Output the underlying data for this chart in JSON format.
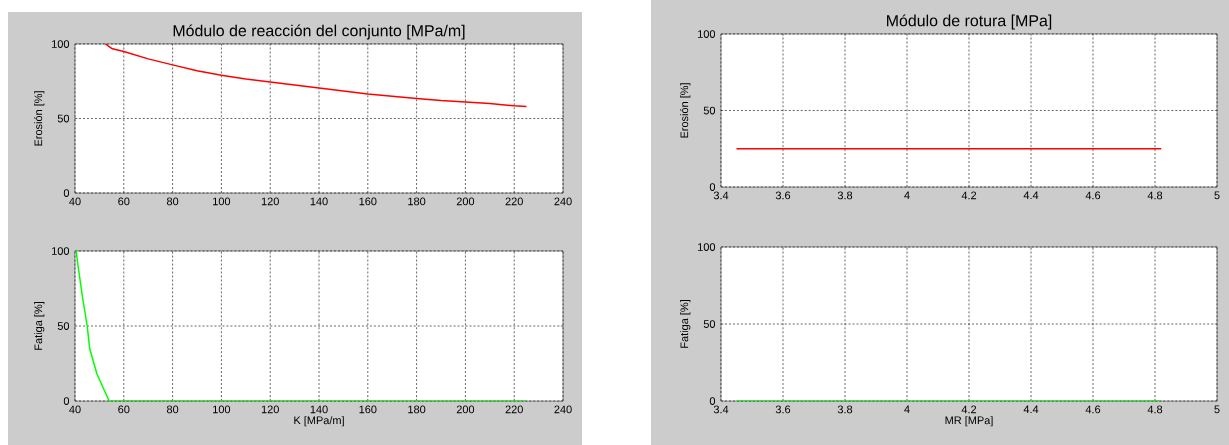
{
  "chart_data": [
    {
      "type": "line",
      "title": "Módulo de reacción del conjunto [MPa/m]",
      "ylabel": "Erosión [%]",
      "xlim": [
        40,
        240
      ],
      "ylim": [
        0,
        100
      ],
      "xticks": [
        40,
        60,
        80,
        100,
        120,
        140,
        160,
        180,
        200,
        220,
        240
      ],
      "yticks": [
        0,
        50,
        100
      ],
      "grid": true,
      "series": [
        {
          "color": "#ff0000",
          "x": [
            52.5,
            55,
            60,
            70,
            80,
            90,
            100,
            110,
            120,
            130,
            140,
            150,
            160,
            170,
            180,
            190,
            200,
            210,
            220,
            225
          ],
          "values": [
            100,
            97,
            95,
            90,
            86,
            82,
            79,
            76.5,
            74.5,
            72.5,
            70.5,
            68.5,
            66.5,
            65,
            63.5,
            62,
            61,
            60,
            58.5,
            58
          ]
        }
      ]
    },
    {
      "type": "line",
      "xlabel": "K [MPa/m]",
      "ylabel": "Fatiga [%]",
      "xlim": [
        40,
        240
      ],
      "ylim": [
        0,
        100
      ],
      "xticks": [
        40,
        60,
        80,
        100,
        120,
        140,
        160,
        180,
        200,
        220,
        240
      ],
      "yticks": [
        0,
        50,
        100
      ],
      "grid": true,
      "series": [
        {
          "color": "#00ff00",
          "x": [
            40.5,
            41,
            43,
            45,
            46,
            49,
            54,
            225
          ],
          "values": [
            100,
            93,
            70,
            50,
            35,
            18,
            0,
            0
          ]
        }
      ]
    },
    {
      "type": "line",
      "title": "Módulo de rotura [MPa]",
      "ylabel": "Erosión [%]",
      "xlim": [
        3.4,
        5
      ],
      "ylim": [
        0,
        100
      ],
      "xticks": [
        3.4,
        3.6,
        3.8,
        4,
        4.2,
        4.4,
        4.6,
        4.8,
        5
      ],
      "yticks": [
        0,
        50,
        100
      ],
      "grid": true,
      "series": [
        {
          "color": "#ff0000",
          "x": [
            3.45,
            4.82
          ],
          "values": [
            25,
            25
          ]
        }
      ]
    },
    {
      "type": "line",
      "xlabel": "MR [MPa]",
      "ylabel": "Fatiga [%]",
      "xlim": [
        3.4,
        5
      ],
      "ylim": [
        0,
        100
      ],
      "xticks": [
        3.4,
        3.6,
        3.8,
        4,
        4.2,
        4.4,
        4.6,
        4.8,
        5
      ],
      "yticks": [
        0,
        50,
        100
      ],
      "grid": true,
      "series": [
        {
          "color": "#00ff00",
          "x": [
            3.45,
            4.82
          ],
          "values": [
            0,
            0
          ]
        }
      ]
    }
  ]
}
